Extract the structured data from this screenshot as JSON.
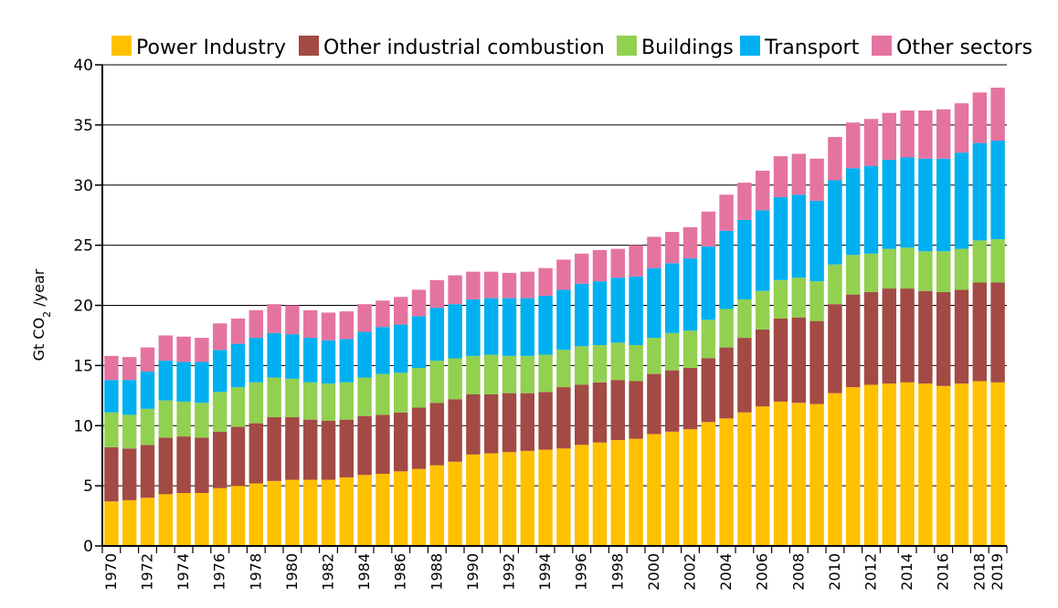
{
  "chart_data": {
    "type": "bar",
    "stacked": true,
    "title": "",
    "xlabel": "",
    "ylabel": {
      "prefix": "Gt CO",
      "subscript": "2",
      "suffix": " /year"
    },
    "ylim": [
      0,
      40
    ],
    "yticks": [
      0,
      5,
      10,
      15,
      20,
      25,
      30,
      35,
      40
    ],
    "grid": "horizontal",
    "legend_position": "top",
    "x_tick_every": 2,
    "categories": [
      "1970",
      "1971",
      "1972",
      "1973",
      "1974",
      "1975",
      "1976",
      "1977",
      "1978",
      "1979",
      "1980",
      "1981",
      "1982",
      "1983",
      "1984",
      "1985",
      "1986",
      "1987",
      "1988",
      "1989",
      "1990",
      "1991",
      "1992",
      "1993",
      "1994",
      "1995",
      "1996",
      "1997",
      "1998",
      "1999",
      "2000",
      "2001",
      "2002",
      "2003",
      "2004",
      "2005",
      "2006",
      "2007",
      "2008",
      "2009",
      "2010",
      "2011",
      "2012",
      "2013",
      "2014",
      "2015",
      "2016",
      "2017",
      "2018",
      "2019"
    ],
    "series": [
      {
        "name": "Power Industry",
        "color": "#FFC000",
        "values": [
          3.7,
          3.8,
          4.0,
          4.3,
          4.4,
          4.4,
          4.8,
          5.0,
          5.2,
          5.4,
          5.5,
          5.5,
          5.5,
          5.7,
          5.9,
          6.0,
          6.2,
          6.4,
          6.7,
          7.0,
          7.6,
          7.7,
          7.8,
          7.9,
          8.0,
          8.1,
          8.4,
          8.6,
          8.8,
          8.9,
          9.3,
          9.5,
          9.7,
          10.3,
          10.6,
          11.1,
          11.6,
          12.0,
          11.9,
          11.8,
          12.7,
          13.2,
          13.4,
          13.5,
          13.6,
          13.5,
          13.3,
          13.5,
          13.7,
          13.6
        ]
      },
      {
        "name": "Other industrial combustion",
        "color": "#A34A44",
        "values": [
          4.5,
          4.3,
          4.4,
          4.7,
          4.7,
          4.6,
          4.7,
          4.9,
          5.0,
          5.3,
          5.2,
          5.0,
          4.9,
          4.8,
          4.9,
          4.9,
          4.9,
          5.1,
          5.2,
          5.2,
          5.0,
          4.9,
          4.9,
          4.8,
          4.8,
          5.1,
          5.0,
          5.0,
          5.0,
          4.8,
          5.0,
          5.1,
          5.1,
          5.3,
          5.9,
          6.2,
          6.4,
          6.9,
          7.1,
          6.9,
          7.4,
          7.7,
          7.7,
          7.9,
          7.8,
          7.7,
          7.8,
          7.8,
          8.2,
          8.3
        ]
      },
      {
        "name": "Buildings",
        "color": "#92D050",
        "values": [
          2.9,
          2.8,
          3.0,
          3.1,
          2.9,
          2.9,
          3.3,
          3.3,
          3.4,
          3.3,
          3.2,
          3.1,
          3.1,
          3.1,
          3.2,
          3.4,
          3.3,
          3.3,
          3.5,
          3.4,
          3.2,
          3.3,
          3.1,
          3.1,
          3.1,
          3.1,
          3.2,
          3.1,
          3.1,
          3.0,
          3.0,
          3.1,
          3.1,
          3.2,
          3.2,
          3.2,
          3.2,
          3.2,
          3.3,
          3.3,
          3.3,
          3.3,
          3.2,
          3.3,
          3.4,
          3.3,
          3.4,
          3.4,
          3.5,
          3.6
        ]
      },
      {
        "name": "Transport",
        "color": "#00B0F0",
        "values": [
          2.7,
          2.9,
          3.1,
          3.3,
          3.3,
          3.4,
          3.5,
          3.6,
          3.7,
          3.7,
          3.7,
          3.7,
          3.6,
          3.6,
          3.8,
          3.9,
          4.0,
          4.3,
          4.4,
          4.5,
          4.7,
          4.7,
          4.8,
          4.8,
          4.9,
          5.0,
          5.2,
          5.3,
          5.4,
          5.7,
          5.8,
          5.8,
          6.0,
          6.1,
          6.5,
          6.6,
          6.7,
          6.9,
          6.9,
          6.7,
          7.0,
          7.2,
          7.3,
          7.4,
          7.5,
          7.7,
          7.7,
          8.0,
          8.1,
          8.2
        ]
      },
      {
        "name": "Other sectors",
        "color": "#E573A0",
        "values": [
          2.0,
          1.9,
          2.0,
          2.1,
          2.1,
          2.0,
          2.2,
          2.1,
          2.3,
          2.4,
          2.4,
          2.3,
          2.3,
          2.3,
          2.3,
          2.2,
          2.3,
          2.2,
          2.3,
          2.4,
          2.3,
          2.2,
          2.1,
          2.2,
          2.3,
          2.5,
          2.5,
          2.6,
          2.4,
          2.6,
          2.6,
          2.6,
          2.6,
          2.9,
          3.0,
          3.1,
          3.3,
          3.4,
          3.4,
          3.5,
          3.6,
          3.8,
          3.9,
          3.9,
          3.9,
          4.0,
          4.1,
          4.1,
          4.2,
          4.4
        ]
      }
    ]
  }
}
